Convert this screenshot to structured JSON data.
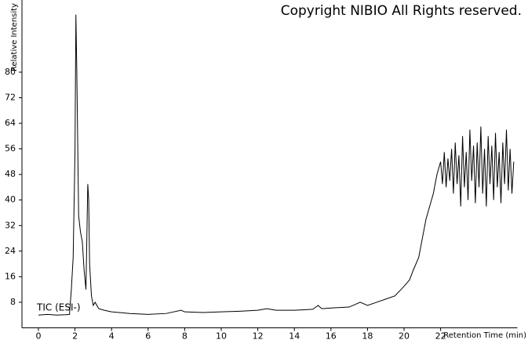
{
  "chart_data": {
    "type": "line",
    "title": "Copyright NIBIO All Rights reserved.",
    "y_label": "Relative Intensity",
    "x_label": "Retention Time (min)",
    "annotation": "TIC (ESI-)",
    "color": "#000000",
    "xlim": [
      -0.9,
      26.2
    ],
    "ylim": [
      0,
      102
    ],
    "xticks": [
      0,
      2,
      4,
      6,
      8,
      10,
      12,
      14,
      16,
      18,
      20,
      22
    ],
    "yticks": [
      8,
      16,
      24,
      32,
      40,
      48,
      56,
      64,
      72,
      80
    ],
    "x": [
      0,
      0.5,
      1.0,
      1.5,
      1.7,
      1.8,
      1.9,
      2.0,
      2.05,
      2.1,
      2.2,
      2.3,
      2.4,
      2.5,
      2.6,
      2.7,
      2.75,
      2.8,
      2.9,
      3.0,
      3.1,
      3.3,
      3.6,
      4,
      5,
      6,
      7,
      7.8,
      8,
      9,
      10,
      11,
      12,
      12.5,
      13,
      14,
      15,
      15.3,
      15.5,
      16,
      17,
      17.6,
      18,
      18.5,
      19,
      19.5,
      20,
      20.3,
      20.5,
      20.8,
      21,
      21.2,
      21.4,
      21.6,
      21.8,
      22,
      22.1,
      22.2,
      22.3,
      22.4,
      22.5,
      22.6,
      22.7,
      22.8,
      22.9,
      23.0,
      23.1,
      23.2,
      23.3,
      23.4,
      23.5,
      23.6,
      23.7,
      23.8,
      23.9,
      24.0,
      24.1,
      24.2,
      24.3,
      24.4,
      24.5,
      24.6,
      24.7,
      24.8,
      24.9,
      25.0,
      25.1,
      25.2,
      25.3,
      25.4,
      25.5,
      25.6,
      25.7,
      25.8,
      25.9,
      26.0
    ],
    "values": [
      4,
      4.2,
      4,
      4.1,
      4.2,
      12,
      22,
      55,
      98,
      80,
      35,
      30,
      27,
      18,
      12,
      45,
      40,
      20,
      10,
      7,
      8,
      6,
      5.5,
      5,
      4.5,
      4.2,
      4.5,
      5.5,
      5,
      4.8,
      5,
      5.2,
      5.5,
      6,
      5.5,
      5.5,
      5.8,
      7,
      6,
      6.2,
      6.5,
      8,
      7,
      8,
      9,
      10,
      13,
      15,
      18,
      22,
      28,
      34,
      38,
      42,
      48,
      52,
      45,
      55,
      44,
      53,
      46,
      56,
      42,
      58,
      45,
      54,
      38,
      60,
      44,
      55,
      40,
      62,
      46,
      57,
      39,
      58,
      44,
      63,
      42,
      56,
      38,
      60,
      45,
      57,
      40,
      61,
      44,
      55,
      39,
      58,
      45,
      62,
      43,
      56,
      42,
      52
    ]
  }
}
